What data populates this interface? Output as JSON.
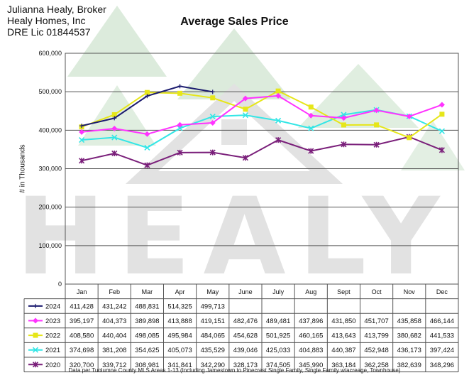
{
  "header": {
    "line1": "Julianna Healy, Broker",
    "line2": "Healy Homes, Inc",
    "line3": "DRE Lic 01844537"
  },
  "watermark": {
    "text": "HEALY"
  },
  "footer": "Data per Tuolumne County MLS Areas 1-13 (Including Jamestown to Pinecrest Single Family, Single Family w/acreage, Townhouse)",
  "chart_data": {
    "type": "line",
    "title": "Average Sales Price",
    "xlabel": "",
    "ylabel": "# in Thousands",
    "ylim": [
      0,
      600000
    ],
    "yticks": [
      0,
      100000,
      200000,
      300000,
      400000,
      500000,
      600000
    ],
    "ytick_labels": [
      "0",
      "100,000",
      "200,000",
      "300,000",
      "400,000",
      "500,000",
      "600,000"
    ],
    "categories": [
      "Jan",
      "Feb",
      "Mar",
      "Apr",
      "May",
      "June",
      "July",
      "Aug",
      "Sept",
      "Oct",
      "Nov",
      "Dec"
    ],
    "grid": "horizontal",
    "legend": "data table below chart",
    "series": [
      {
        "name": "2024",
        "color": "#1a1a6e",
        "marker": "plus",
        "values": [
          411428,
          431242,
          488831,
          514325,
          499713,
          null,
          null,
          null,
          null,
          null,
          null,
          null
        ],
        "labels": [
          "411,428",
          "431,242",
          "488,831",
          "514,325",
          "499,713",
          "",
          "",
          "",
          "",
          "",
          "",
          ""
        ]
      },
      {
        "name": "2023",
        "color": "#ff33ff",
        "marker": "diamond",
        "values": [
          395197,
          404373,
          389898,
          413888,
          419151,
          482476,
          489481,
          437896,
          431850,
          451707,
          435858,
          466144
        ],
        "labels": [
          "395,197",
          "404,373",
          "389,898",
          "413,888",
          "419,151",
          "482,476",
          "489,481",
          "437,896",
          "431,850",
          "451,707",
          "435,858",
          "466,144"
        ]
      },
      {
        "name": "2022",
        "color": "#e6e619",
        "marker": "square",
        "values": [
          408580,
          440404,
          498085,
          495984,
          484065,
          454628,
          501925,
          460165,
          413643,
          413799,
          380682,
          441533
        ],
        "labels": [
          "408,580",
          "440,404",
          "498,085",
          "495,984",
          "484,065",
          "454,628",
          "501,925",
          "460,165",
          "413,643",
          "413,799",
          "380,682",
          "441,533"
        ]
      },
      {
        "name": "2021",
        "color": "#33e6e6",
        "marker": "x",
        "values": [
          374698,
          381208,
          354625,
          405073,
          435529,
          439046,
          425033,
          404883,
          440387,
          452948,
          436173,
          397424
        ],
        "labels": [
          "374,698",
          "381,208",
          "354,625",
          "405,073",
          "435,529",
          "439,046",
          "425,033",
          "404,883",
          "440,387",
          "452,948",
          "436,173",
          "397,424"
        ]
      },
      {
        "name": "2020",
        "color": "#7a1f7a",
        "marker": "star",
        "values": [
          320700,
          339712,
          308981,
          341841,
          342290,
          328173,
          374505,
          345990,
          363184,
          362258,
          382639,
          348296
        ],
        "labels": [
          "320,700",
          "339,712",
          "308,981",
          "341,841",
          "342,290",
          "328,173",
          "374,505",
          "345,990",
          "363,184",
          "362,258",
          "382,639",
          "348,296"
        ]
      }
    ]
  }
}
